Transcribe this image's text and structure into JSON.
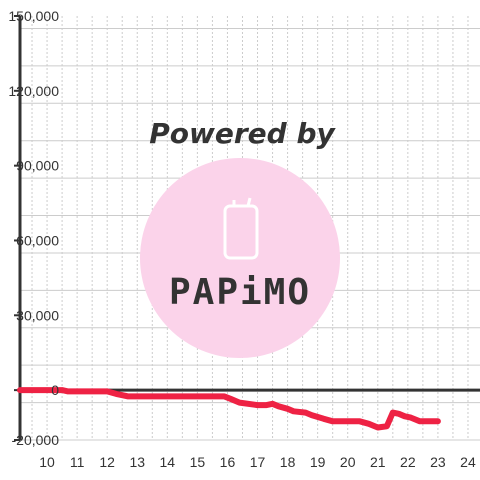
{
  "chart_data": {
    "type": "line",
    "title": "",
    "xlabel": "",
    "ylabel": "",
    "xlim": [
      9.1,
      24.4
    ],
    "ylim": [
      -20000,
      150000
    ],
    "x_ticks": [
      10,
      11,
      12,
      13,
      14,
      15,
      16,
      17,
      18,
      19,
      20,
      21,
      22,
      23,
      24
    ],
    "y_ticks": [
      -20000,
      0,
      30000,
      60000,
      90000,
      120000,
      150000
    ],
    "x_tick_labels": [
      "10",
      "11",
      "12",
      "13",
      "14",
      "15",
      "16",
      "17",
      "18",
      "19",
      "20",
      "21",
      "22",
      "23",
      "24"
    ],
    "y_tick_labels": [
      "-20,000",
      "0",
      "30,000",
      "60,000",
      "90,000",
      "120,000",
      "150,000"
    ],
    "grid": true,
    "legend": "none",
    "series": [
      {
        "color": "#ee2244",
        "x": [
          9.1,
          10.5,
          10.7,
          12.0,
          12.3,
          12.7,
          15.9,
          16.1,
          16.4,
          17.0,
          17.3,
          17.5,
          17.7,
          18.0,
          18.2,
          18.6,
          18.8,
          19.2,
          19.5,
          20.4,
          20.7,
          21.0,
          21.3,
          21.5,
          21.7,
          21.9,
          22.1,
          22.4,
          22.6,
          23.0
        ],
        "y": [
          0,
          0,
          -500,
          -500,
          -1500,
          -2500,
          -2500,
          -3500,
          -5000,
          -6000,
          -6000,
          -5500,
          -6500,
          -7500,
          -8500,
          -9000,
          -10000,
          -11500,
          -12500,
          -12500,
          -13500,
          -15000,
          -14500,
          -9000,
          -9500,
          -10500,
          -11000,
          -12500,
          -12500,
          -12500
        ]
      }
    ]
  },
  "watermark": {
    "text": "Powered by",
    "brand": "PAPiMO",
    "color": "#fbd3ea",
    "text_color": "#f9cde4"
  },
  "colors": {
    "axis": "#333333",
    "grid": "#cccccc",
    "zero_line": "#333333"
  }
}
